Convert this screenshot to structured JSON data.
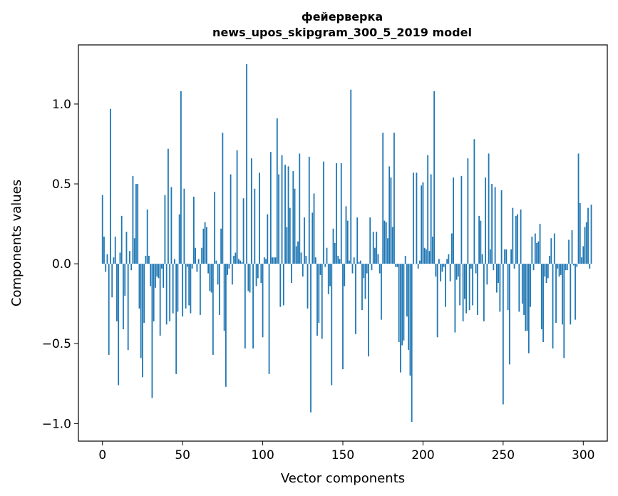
{
  "chart_data": {
    "type": "bar",
    "title_line1": "фейерверка",
    "title_line2": "news_upos_skipgram_300_5_2019 model",
    "xlabel": "Vector components",
    "ylabel": "Components values",
    "xlim": [
      -15,
      315
    ],
    "ylim": [
      -1.11,
      1.37
    ],
    "x_ticks": [
      {
        "value": 0,
        "label": "0"
      },
      {
        "value": 50,
        "label": "50"
      },
      {
        "value": 100,
        "label": "100"
      },
      {
        "value": 150,
        "label": "150"
      },
      {
        "value": 200,
        "label": "200"
      },
      {
        "value": 250,
        "label": "250"
      },
      {
        "value": 300,
        "label": "300"
      }
    ],
    "y_ticks": [
      {
        "value": 1.0,
        "label": "1.0"
      },
      {
        "value": 0.5,
        "label": "0.5"
      },
      {
        "value": 0.0,
        "label": "0.0"
      },
      {
        "value": -0.5,
        "label": "−0.5"
      },
      {
        "value": -1.0,
        "label": "−1.0"
      }
    ],
    "bar_color": "#1f77b4",
    "values": [
      0.43,
      0.17,
      -0.05,
      0.06,
      -0.57,
      0.97,
      -0.21,
      0.04,
      0.17,
      -0.36,
      -0.76,
      0.07,
      0.3,
      -0.41,
      -0.2,
      0.2,
      -0.54,
      0.08,
      -0.04,
      0.55,
      0.16,
      0.5,
      0.5,
      -0.28,
      -0.59,
      -0.71,
      -0.37,
      0.05,
      0.34,
      0.05,
      -0.14,
      -0.84,
      -0.36,
      -0.15,
      -0.08,
      -0.09,
      -0.45,
      -0.03,
      -0.15,
      0.43,
      -0.38,
      0.72,
      -0.36,
      0.48,
      -0.31,
      0.03,
      -0.69,
      -0.3,
      0.31,
      1.08,
      -0.33,
      0.47,
      -0.28,
      -0.02,
      -0.26,
      -0.31,
      -0.03,
      0.42,
      0.1,
      -0.05,
      0.03,
      -0.32,
      0.1,
      0.22,
      0.26,
      0.23,
      -0.06,
      -0.17,
      -0.18,
      -0.57,
      0.45,
      0.02,
      -0.13,
      -0.32,
      0.22,
      0.82,
      -0.42,
      -0.77,
      -0.07,
      -0.03,
      0.56,
      -0.13,
      0.05,
      0.07,
      0.71,
      0.03,
      0.02,
      0.01,
      0.41,
      -0.53,
      1.25,
      -0.17,
      -0.18,
      0.66,
      -0.53,
      0.47,
      -0.14,
      -0.09,
      0.57,
      -0.12,
      -0.46,
      0.04,
      0.03,
      0.31,
      -0.69,
      0.7,
      0.04,
      0.04,
      0.04,
      0.91,
      0.56,
      -0.27,
      0.68,
      -0.26,
      0.62,
      0.23,
      0.61,
      0.35,
      -0.12,
      0.58,
      0.47,
      0.11,
      0.14,
      0.69,
      0.07,
      -0.08,
      0.29,
      0.05,
      -0.28,
      0.67,
      -0.93,
      0.32,
      0.44,
      0.04,
      -0.45,
      -0.37,
      -0.07,
      -0.47,
      0.64,
      -0.02,
      0.1,
      -0.19,
      -0.14,
      -0.76,
      0.22,
      0.13,
      0.63,
      0.05,
      0.03,
      0.63,
      -0.66,
      -0.14,
      0.36,
      0.27,
      0.02,
      1.09,
      -0.06,
      0.04,
      -0.44,
      0.29,
      0.01,
      0.02,
      -0.29,
      -0.09,
      -0.22,
      -0.06,
      -0.58,
      0.29,
      -0.04,
      0.2,
      0.1,
      0.2,
      0.06,
      -0.06,
      -0.35,
      0.82,
      0.27,
      0.26,
      0.16,
      0.61,
      0.54,
      0.23,
      0.82,
      -0.02,
      -0.02,
      -0.49,
      -0.68,
      -0.51,
      -0.48,
      0.05,
      -0.33,
      -0.54,
      -0.7,
      -0.99,
      0.57,
      0.0,
      0.57,
      -0.03,
      0.02,
      0.49,
      0.51,
      0.1,
      0.09,
      0.68,
      0.08,
      0.56,
      0.17,
      1.08,
      -0.08,
      -0.46,
      0.03,
      -0.11,
      -0.05,
      -0.02,
      -0.27,
      0.03,
      0.06,
      -0.11,
      0.19,
      0.54,
      -0.43,
      -0.1,
      -0.08,
      -0.26,
      0.55,
      -0.36,
      -0.22,
      -0.31,
      0.66,
      -0.29,
      -0.03,
      -0.26,
      0.78,
      -0.06,
      -0.32,
      0.3,
      0.27,
      0.06,
      -0.36,
      0.54,
      -0.13,
      0.69,
      0.09,
      0.5,
      -0.04,
      0.48,
      -0.18,
      -0.12,
      -0.3,
      0.46,
      -0.88,
      0.09,
      0.09,
      -0.29,
      -0.63,
      0.09,
      0.35,
      -0.03,
      0.3,
      0.31,
      -0.3,
      0.34,
      -0.25,
      -0.32,
      -0.42,
      -0.42,
      -0.56,
      -0.27,
      0.17,
      -0.04,
      0.19,
      0.13,
      0.14,
      0.25,
      -0.41,
      -0.49,
      -0.08,
      -0.12,
      -0.09,
      0.05,
      0.16,
      -0.53,
      0.19,
      -0.37,
      -0.03,
      -0.08,
      -0.07,
      -0.38,
      -0.59,
      -0.04,
      -0.04,
      0.15,
      -0.38,
      0.21,
      -0.01,
      -0.35,
      -0.02,
      0.69,
      0.38,
      0.04,
      0.11,
      0.23,
      0.26,
      0.35,
      -0.03,
      0.37
    ]
  }
}
